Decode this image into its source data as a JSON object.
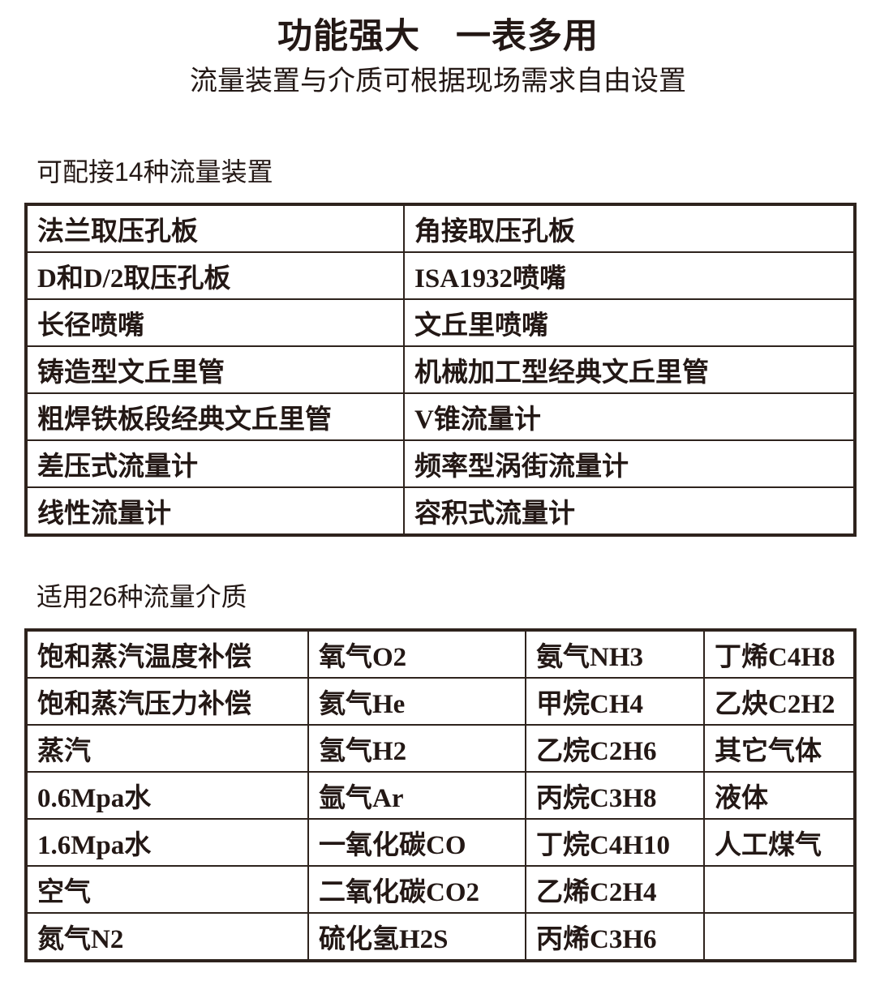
{
  "page": {
    "title": "功能强大　一表多用",
    "subtitle": "流量装置与介质可根据现场需求自由设置"
  },
  "devices_section": {
    "heading": "可配接14种流量装置",
    "rows": [
      [
        "法兰取压孔板",
        "角接取压孔板"
      ],
      [
        "D和D/2取压孔板",
        "ISA1932喷嘴"
      ],
      [
        "长径喷嘴",
        "文丘里喷嘴"
      ],
      [
        "铸造型文丘里管",
        "机械加工型经典文丘里管"
      ],
      [
        "粗焊铁板段经典文丘里管",
        "V锥流量计"
      ],
      [
        "差压式流量计",
        "频率型涡街流量计"
      ],
      [
        "线性流量计",
        "容积式流量计"
      ]
    ]
  },
  "media_section": {
    "heading": "适用26种流量介质",
    "rows": [
      [
        "饱和蒸汽温度补偿",
        "氧气O2",
        "氨气NH3",
        "丁烯C4H8"
      ],
      [
        "饱和蒸汽压力补偿",
        "氦气He",
        "甲烷CH4",
        "乙炔C2H2"
      ],
      [
        "蒸汽",
        "氢气H2",
        "乙烷C2H6",
        "其它气体"
      ],
      [
        "0.6Mpa水",
        "氩气Ar",
        "丙烷C3H8",
        "液体"
      ],
      [
        "1.6Mpa水",
        "一氧化碳CO",
        "丁烷C4H10",
        "人工煤气"
      ],
      [
        "空气",
        "二氧化碳CO2",
        "乙烯C2H4",
        ""
      ],
      [
        "氮气N2",
        "硫化氢H2S",
        "丙烯C3H6",
        ""
      ]
    ]
  },
  "colors": {
    "text": "#231815",
    "border": "#2e231d",
    "background": "#ffffff"
  }
}
